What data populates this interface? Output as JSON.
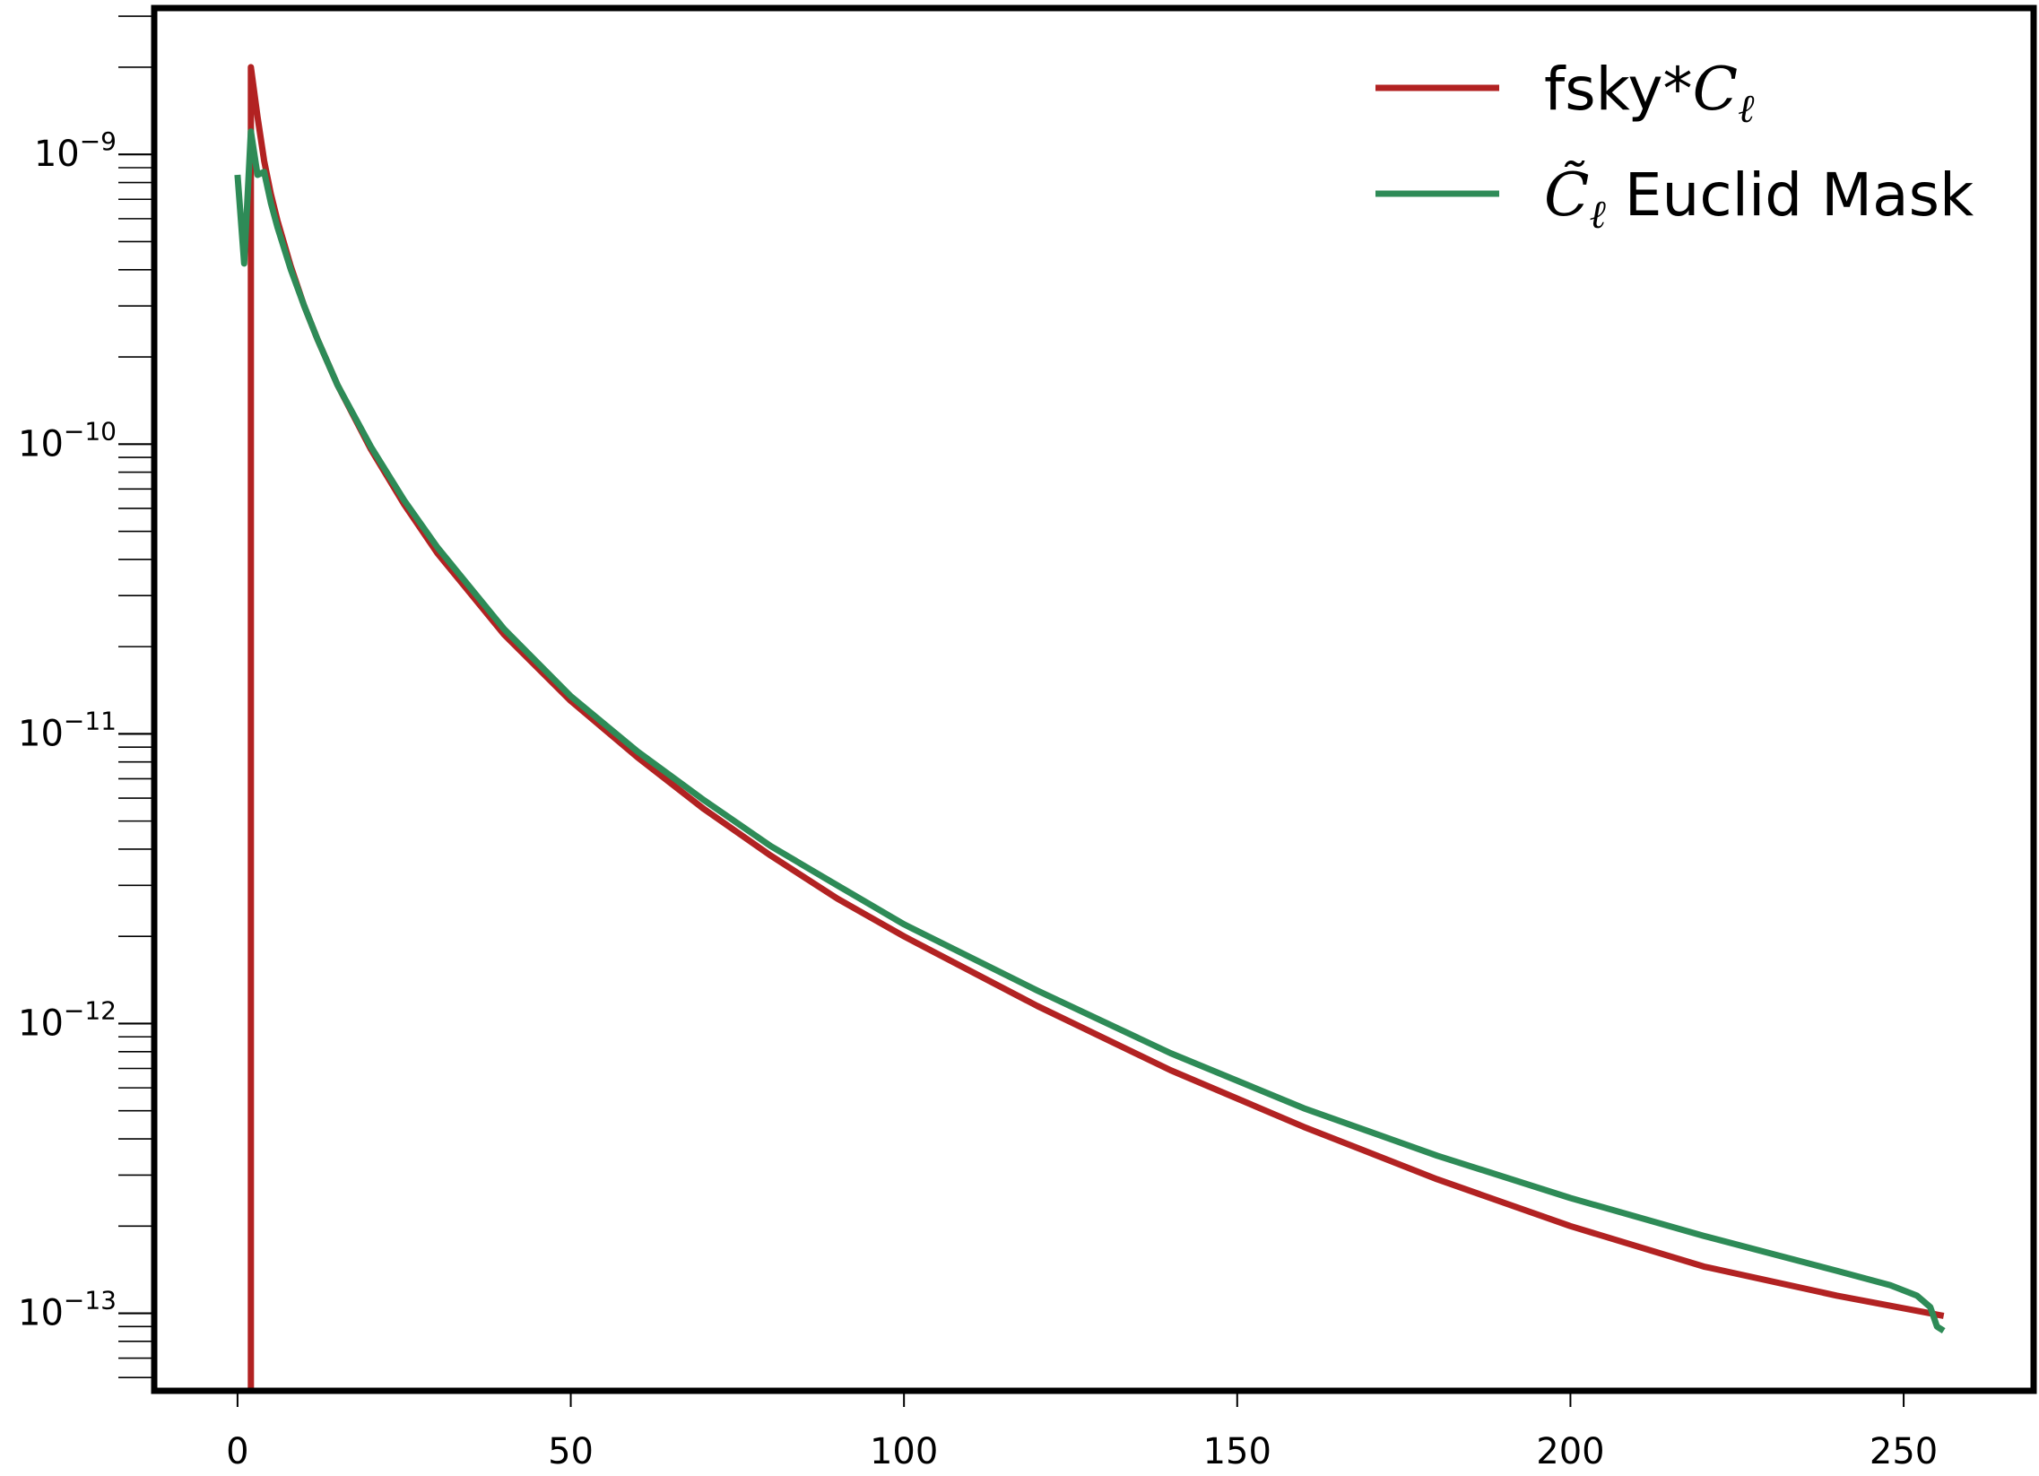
{
  "chart_data": {
    "type": "line",
    "title": "",
    "xlabel": "",
    "ylabel": "",
    "xlim": [
      -12.5,
      269.5
    ],
    "ylim": [
      5.4e-14,
      3.2e-09
    ],
    "yscale": "log",
    "grid": false,
    "legend_position": "top-right",
    "x_ticks": [
      0,
      50,
      100,
      150,
      200,
      250
    ],
    "x_tick_labels": [
      "0",
      "50",
      "100",
      "150",
      "200",
      "250"
    ],
    "y_ticks": [
      1e-09,
      1e-10,
      1e-11,
      1e-12,
      1e-13
    ],
    "y_tick_labels": [
      {
        "base": "10",
        "exp": "−9"
      },
      {
        "base": "10",
        "exp": "−10"
      },
      {
        "base": "10",
        "exp": "−11"
      },
      {
        "base": "10",
        "exp": "−12"
      },
      {
        "base": "10",
        "exp": "−13"
      }
    ],
    "series": [
      {
        "name": "fsky*C_ℓ",
        "legend_main": "fsky*",
        "legend_symbol": "C",
        "legend_subscript": "ℓ",
        "color": "#b22222",
        "x": [
          2,
          2,
          3,
          4,
          5,
          6,
          8,
          10,
          12,
          15,
          20,
          25,
          30,
          40,
          50,
          60,
          70,
          80,
          90,
          100,
          120,
          140,
          160,
          180,
          200,
          220,
          240,
          256
        ],
        "y": [
          5.4e-14,
          2e-09,
          1.35e-09,
          9.5e-10,
          7.3e-10,
          5.9e-10,
          4.1e-10,
          3e-10,
          2.3e-10,
          1.6e-10,
          9.6e-11,
          6.2e-11,
          4.2e-11,
          2.2e-11,
          1.3e-11,
          8.3e-12,
          5.5e-12,
          3.8e-12,
          2.7e-12,
          2e-12,
          1.15e-12,
          6.9e-13,
          4.4e-13,
          2.9e-13,
          2e-13,
          1.45e-13,
          1.15e-13,
          9.8e-14
        ]
      },
      {
        "name": "C̃_ℓ Euclid Mask",
        "legend_symbol": "C̃",
        "legend_subscript": "ℓ",
        "legend_main": " Euclid Mask",
        "color": "#2e8b57",
        "x": [
          0,
          1,
          2,
          3,
          4,
          5,
          6,
          8,
          10,
          12,
          15,
          20,
          25,
          30,
          40,
          50,
          60,
          70,
          80,
          90,
          100,
          120,
          140,
          160,
          180,
          200,
          220,
          240,
          248,
          252,
          254,
          255,
          256
        ],
        "y": [
          8.5e-10,
          4.2e-10,
          1.2e-09,
          8.5e-10,
          8.7e-10,
          6.8e-10,
          5.6e-10,
          4e-10,
          3e-10,
          2.3e-10,
          1.6e-10,
          9.8e-11,
          6.4e-11,
          4.4e-11,
          2.3e-11,
          1.35e-11,
          8.7e-12,
          5.9e-12,
          4.1e-12,
          3e-12,
          2.2e-12,
          1.3e-12,
          7.9e-13,
          5.1e-13,
          3.5e-13,
          2.5e-13,
          1.85e-13,
          1.4e-13,
          1.25e-13,
          1.15e-13,
          1.05e-13,
          9e-14,
          8.7e-14
        ]
      }
    ]
  }
}
